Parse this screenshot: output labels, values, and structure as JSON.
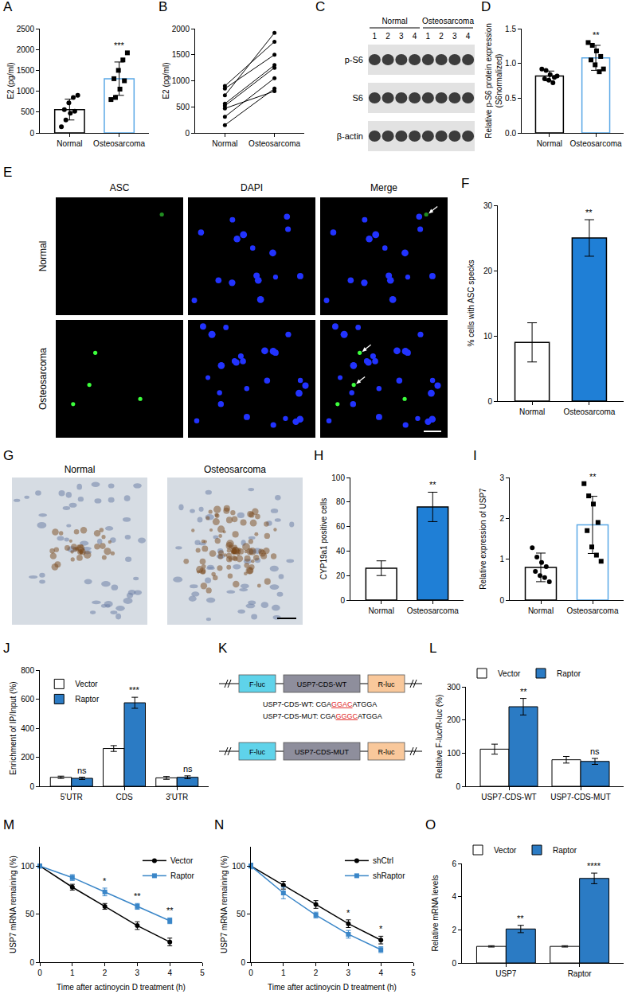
{
  "chart_data": [
    {
      "panel": "A",
      "type": "bar",
      "categories": [
        "Normal",
        "Osteosarcoma"
      ],
      "values": [
        560,
        1300
      ],
      "errors": [
        250,
        400
      ],
      "colors": [
        "#000000",
        "#5aa8e6"
      ],
      "points": [
        {
          "marker": "circle",
          "values": [
            150,
            310,
            470,
            520,
            560,
            720,
            850,
            900
          ]
        },
        {
          "marker": "square",
          "values": [
            800,
            850,
            1050,
            1250,
            1300,
            1500,
            1750,
            1920
          ]
        }
      ],
      "ylabel": "E2 (pg/ml)",
      "ylim": [
        0,
        2500
      ],
      "yticks": [
        0,
        500,
        1000,
        1500,
        2000,
        2500
      ],
      "grid": false,
      "annotations": [
        {
          "category": "Osteosarcoma",
          "text": "***"
        }
      ]
    },
    {
      "panel": "B",
      "type": "line",
      "categories": [
        "Normal",
        "Osteosarcoma"
      ],
      "series": [
        {
          "values": [
            150,
            850
          ]
        },
        {
          "values": [
            310,
            1050
          ]
        },
        {
          "values": [
            470,
            800
          ]
        },
        {
          "values": [
            520,
            1250
          ]
        },
        {
          "values": [
            560,
            1300
          ]
        },
        {
          "values": [
            720,
            1920
          ]
        },
        {
          "values": [
            850,
            1500
          ]
        },
        {
          "values": [
            900,
            1750
          ]
        }
      ],
      "color": "#000000",
      "marker": "circle",
      "ylabel": "E2 (pg/ml)",
      "ylim": [
        0,
        2000
      ],
      "yticks": [
        0,
        500,
        1000,
        1500,
        2000
      ],
      "grid": false
    },
    {
      "panel": "D",
      "type": "bar",
      "categories": [
        "Normal",
        "Osteosarcoma"
      ],
      "values": [
        0.82,
        1.08
      ],
      "errors": [
        0.07,
        0.18
      ],
      "colors": [
        "#000000",
        "#5aa8e6"
      ],
      "points": [
        {
          "marker": "circle",
          "values": [
            0.92,
            0.9,
            0.84,
            0.8,
            0.78,
            0.76,
            0.72,
            0.82
          ]
        },
        {
          "marker": "square",
          "values": [
            1.3,
            1.26,
            1.18,
            1.1,
            1.05,
            0.98,
            0.88,
            0.92
          ]
        }
      ],
      "ylabel": "Relative p-S6 protein expression\n(S6normalized)",
      "ylim": [
        0,
        1.5
      ],
      "yticks": [
        {
          "value": 0,
          "label": "0.0"
        },
        {
          "value": 0.5,
          "label": "0.5"
        },
        {
          "value": 1,
          "label": "1.0"
        },
        {
          "value": 1.5,
          "label": "1.5"
        }
      ],
      "grid": false,
      "annotations": [
        {
          "category": "Osteosarcoma",
          "text": "**"
        }
      ]
    },
    {
      "panel": "F",
      "type": "bar",
      "categories": [
        "Normal",
        "Osteosarcoma"
      ],
      "values": [
        9,
        25
      ],
      "errors": [
        3,
        2.8
      ],
      "colors": [
        "#ffffff",
        "#1f7fd6"
      ],
      "ylabel": "% cells with ASC specks",
      "ylim": [
        0,
        30
      ],
      "yticks": [
        0,
        10,
        20,
        30
      ],
      "grid": false,
      "annotations": [
        {
          "category": "Osteosarcoma",
          "text": "**"
        }
      ]
    },
    {
      "panel": "H",
      "type": "bar",
      "categories": [
        "Normal",
        "Osteosarcoma"
      ],
      "values": [
        26,
        76
      ],
      "errors": [
        6,
        12
      ],
      "colors": [
        "#ffffff",
        "#1f7fd6"
      ],
      "ylabel": "CYP19a1 positive cells",
      "ylim": [
        0,
        100
      ],
      "yticks": [
        0,
        20,
        40,
        60,
        80,
        100
      ],
      "grid": false,
      "annotations": [
        {
          "category": "Osteosarcoma",
          "text": "**"
        }
      ]
    },
    {
      "panel": "I",
      "type": "bar",
      "categories": [
        "Normal",
        "Osteosarcoma"
      ],
      "values": [
        0.8,
        1.84
      ],
      "errors": [
        0.35,
        0.7
      ],
      "colors": [
        "#000000",
        "#5aa8e6"
      ],
      "points": [
        {
          "marker": "circle",
          "values": [
            1.28,
            1.05,
            0.92,
            0.82,
            0.7,
            0.6,
            0.55,
            0.45
          ]
        },
        {
          "marker": "square",
          "values": [
            2.85,
            2.55,
            2.35,
            1.9,
            1.7,
            1.3,
            1.1,
            0.95
          ]
        }
      ],
      "ylabel": "Relative expression of USP7",
      "ylim": [
        0,
        3
      ],
      "yticks": [
        0,
        1,
        2,
        3
      ],
      "grid": false,
      "annotations": [
        {
          "category": "Osteosarcoma",
          "text": "**"
        }
      ]
    },
    {
      "panel": "J",
      "type": "bar",
      "categories": [
        "5'UTR",
        "CDS",
        "3'UTR"
      ],
      "series": [
        {
          "name": "Vector",
          "color": "#ffffff",
          "values": [
            62,
            260,
            58
          ],
          "errors": [
            8,
            20,
            10
          ]
        },
        {
          "name": "Raptor",
          "color": "#2b7bc4",
          "values": [
            55,
            575,
            62
          ],
          "errors": [
            8,
            38,
            10
          ]
        }
      ],
      "ylabel": "Enrichment of IP/Input (%)",
      "ylim": [
        0,
        800
      ],
      "yticks": [
        0,
        200,
        400,
        600,
        800
      ],
      "grid": false,
      "legend": "top left",
      "annotations": [
        {
          "category": "5'UTR",
          "series": "Raptor",
          "text": "ns"
        },
        {
          "category": "CDS",
          "series": "Raptor",
          "text": "***"
        },
        {
          "category": "3'UTR",
          "series": "Raptor",
          "text": "ns"
        }
      ]
    },
    {
      "panel": "L",
      "type": "bar",
      "categories": [
        "USP7-CDS-WT",
        "USP7-CDS-MUT"
      ],
      "series": [
        {
          "name": "Vector",
          "color": "#ffffff",
          "values": [
            112,
            80
          ],
          "errors": [
            15,
            10
          ]
        },
        {
          "name": "Raptor",
          "color": "#2b7bc4",
          "values": [
            240,
            75
          ],
          "errors": [
            25,
            9
          ]
        }
      ],
      "ylabel": "Relative F-luc/R-luc (%)",
      "ylim": [
        0,
        300
      ],
      "yticks": [
        0,
        100,
        200,
        300
      ],
      "grid": false,
      "legend": "top",
      "annotations": [
        {
          "category": "USP7-CDS-WT",
          "series": "Raptor",
          "text": "**"
        },
        {
          "category": "USP7-CDS-MUT",
          "series": "Raptor",
          "text": "ns"
        }
      ]
    },
    {
      "panel": "M",
      "type": "line",
      "x": [
        0,
        1,
        2,
        3,
        4
      ],
      "series": [
        {
          "name": "Vector",
          "color": "#000000",
          "marker": "circle",
          "values": [
            100,
            78,
            58,
            38,
            21
          ],
          "errors": [
            2,
            3,
            3,
            4,
            4
          ]
        },
        {
          "name": "Raptor",
          "color": "#3a86c8",
          "marker": "square",
          "values": [
            100,
            88,
            73,
            58,
            43
          ],
          "errors": [
            2,
            3,
            4,
            3,
            3
          ]
        }
      ],
      "xlabel": "Time after actinoycin D treatment (h)",
      "ylabel": "USP7 mRNA remaining (%)",
      "xlim": [
        0,
        5
      ],
      "xticks": [
        0,
        1,
        2,
        3,
        4,
        5
      ],
      "ylim": [
        0,
        120
      ],
      "yticks": [
        0,
        50,
        100
      ],
      "grid": false,
      "legend": "top right",
      "annotations": [
        {
          "x": 2,
          "text": "*"
        },
        {
          "x": 3,
          "text": "**"
        },
        {
          "x": 4,
          "text": "**"
        }
      ]
    },
    {
      "panel": "N",
      "type": "line",
      "x": [
        0,
        1,
        2,
        3,
        4
      ],
      "series": [
        {
          "name": "shCtrl",
          "color": "#000000",
          "marker": "circle",
          "values": [
            100,
            80,
            60,
            40,
            23
          ],
          "errors": [
            2,
            4,
            4,
            4,
            4
          ]
        },
        {
          "name": "shRaptor",
          "color": "#3a86c8",
          "marker": "square",
          "values": [
            100,
            72,
            49,
            29,
            13
          ],
          "errors": [
            3,
            6,
            3,
            4,
            3
          ]
        }
      ],
      "xlabel": "Time after actinoycin D treatment (h)",
      "ylabel": "USP7 mRNA remaining (%)",
      "xlim": [
        0,
        5
      ],
      "xticks": [
        0,
        1,
        2,
        3,
        4,
        5
      ],
      "ylim": [
        0,
        120
      ],
      "yticks": [
        0,
        50,
        100
      ],
      "grid": false,
      "legend": "top right",
      "annotations": [
        {
          "x": 3,
          "text": "*"
        },
        {
          "x": 4,
          "text": "*"
        }
      ]
    },
    {
      "panel": "O",
      "type": "bar",
      "categories": [
        "USP7",
        "Raptor"
      ],
      "series": [
        {
          "name": "Vector",
          "color": "#ffffff",
          "values": [
            1,
            1
          ],
          "errors": [
            0.04,
            0.04
          ]
        },
        {
          "name": "Raptor",
          "color": "#2b7bc4",
          "values": [
            2.05,
            5.1
          ],
          "errors": [
            0.22,
            0.32
          ]
        }
      ],
      "ylabel": "Relative mRNA levels",
      "ylim": [
        0,
        6
      ],
      "yticks": [
        0,
        2,
        4,
        6
      ],
      "grid": false,
      "legend": "top",
      "annotations": [
        {
          "category": "USP7",
          "series": "Raptor",
          "text": "**"
        },
        {
          "category": "Raptor",
          "series": "Raptor",
          "text": "****"
        }
      ]
    }
  ],
  "figures": [
    {
      "panel": "C",
      "kind": "blot",
      "groups": [
        {
          "label": "Normal",
          "lanes": [
            "1",
            "2",
            "3",
            "4"
          ]
        },
        {
          "label": "Osteosarcoma",
          "lanes": [
            "1",
            "2",
            "3",
            "4"
          ]
        }
      ],
      "rows": [
        "p-S6",
        "S6",
        "β-actin"
      ]
    },
    {
      "panel": "E",
      "kind": "micrographs",
      "columns": [
        "ASC",
        "DAPI",
        "Merge"
      ],
      "rows": [
        "Normal",
        "Osteosarcoma"
      ]
    },
    {
      "panel": "G",
      "kind": "ihc",
      "images": [
        "Normal",
        "Osteosarcoma"
      ]
    },
    {
      "panel": "K",
      "kind": "constructs",
      "constructs": [
        {
          "boxes": [
            "F-luc",
            "USP7-CDS-WT",
            "R-luc"
          ]
        },
        {
          "boxes": [
            "F-luc",
            "USP7-CDS-MUT",
            "R-luc"
          ]
        }
      ],
      "sequences": [
        {
          "name": "USP7-CDS-WT: ",
          "parts": [
            "CGA",
            "GGAC",
            "ATGGA"
          ]
        },
        {
          "name": "USP7-CDS-MUT: ",
          "parts": [
            "CGA",
            "GGGC",
            "ATGGA"
          ]
        }
      ]
    }
  ]
}
